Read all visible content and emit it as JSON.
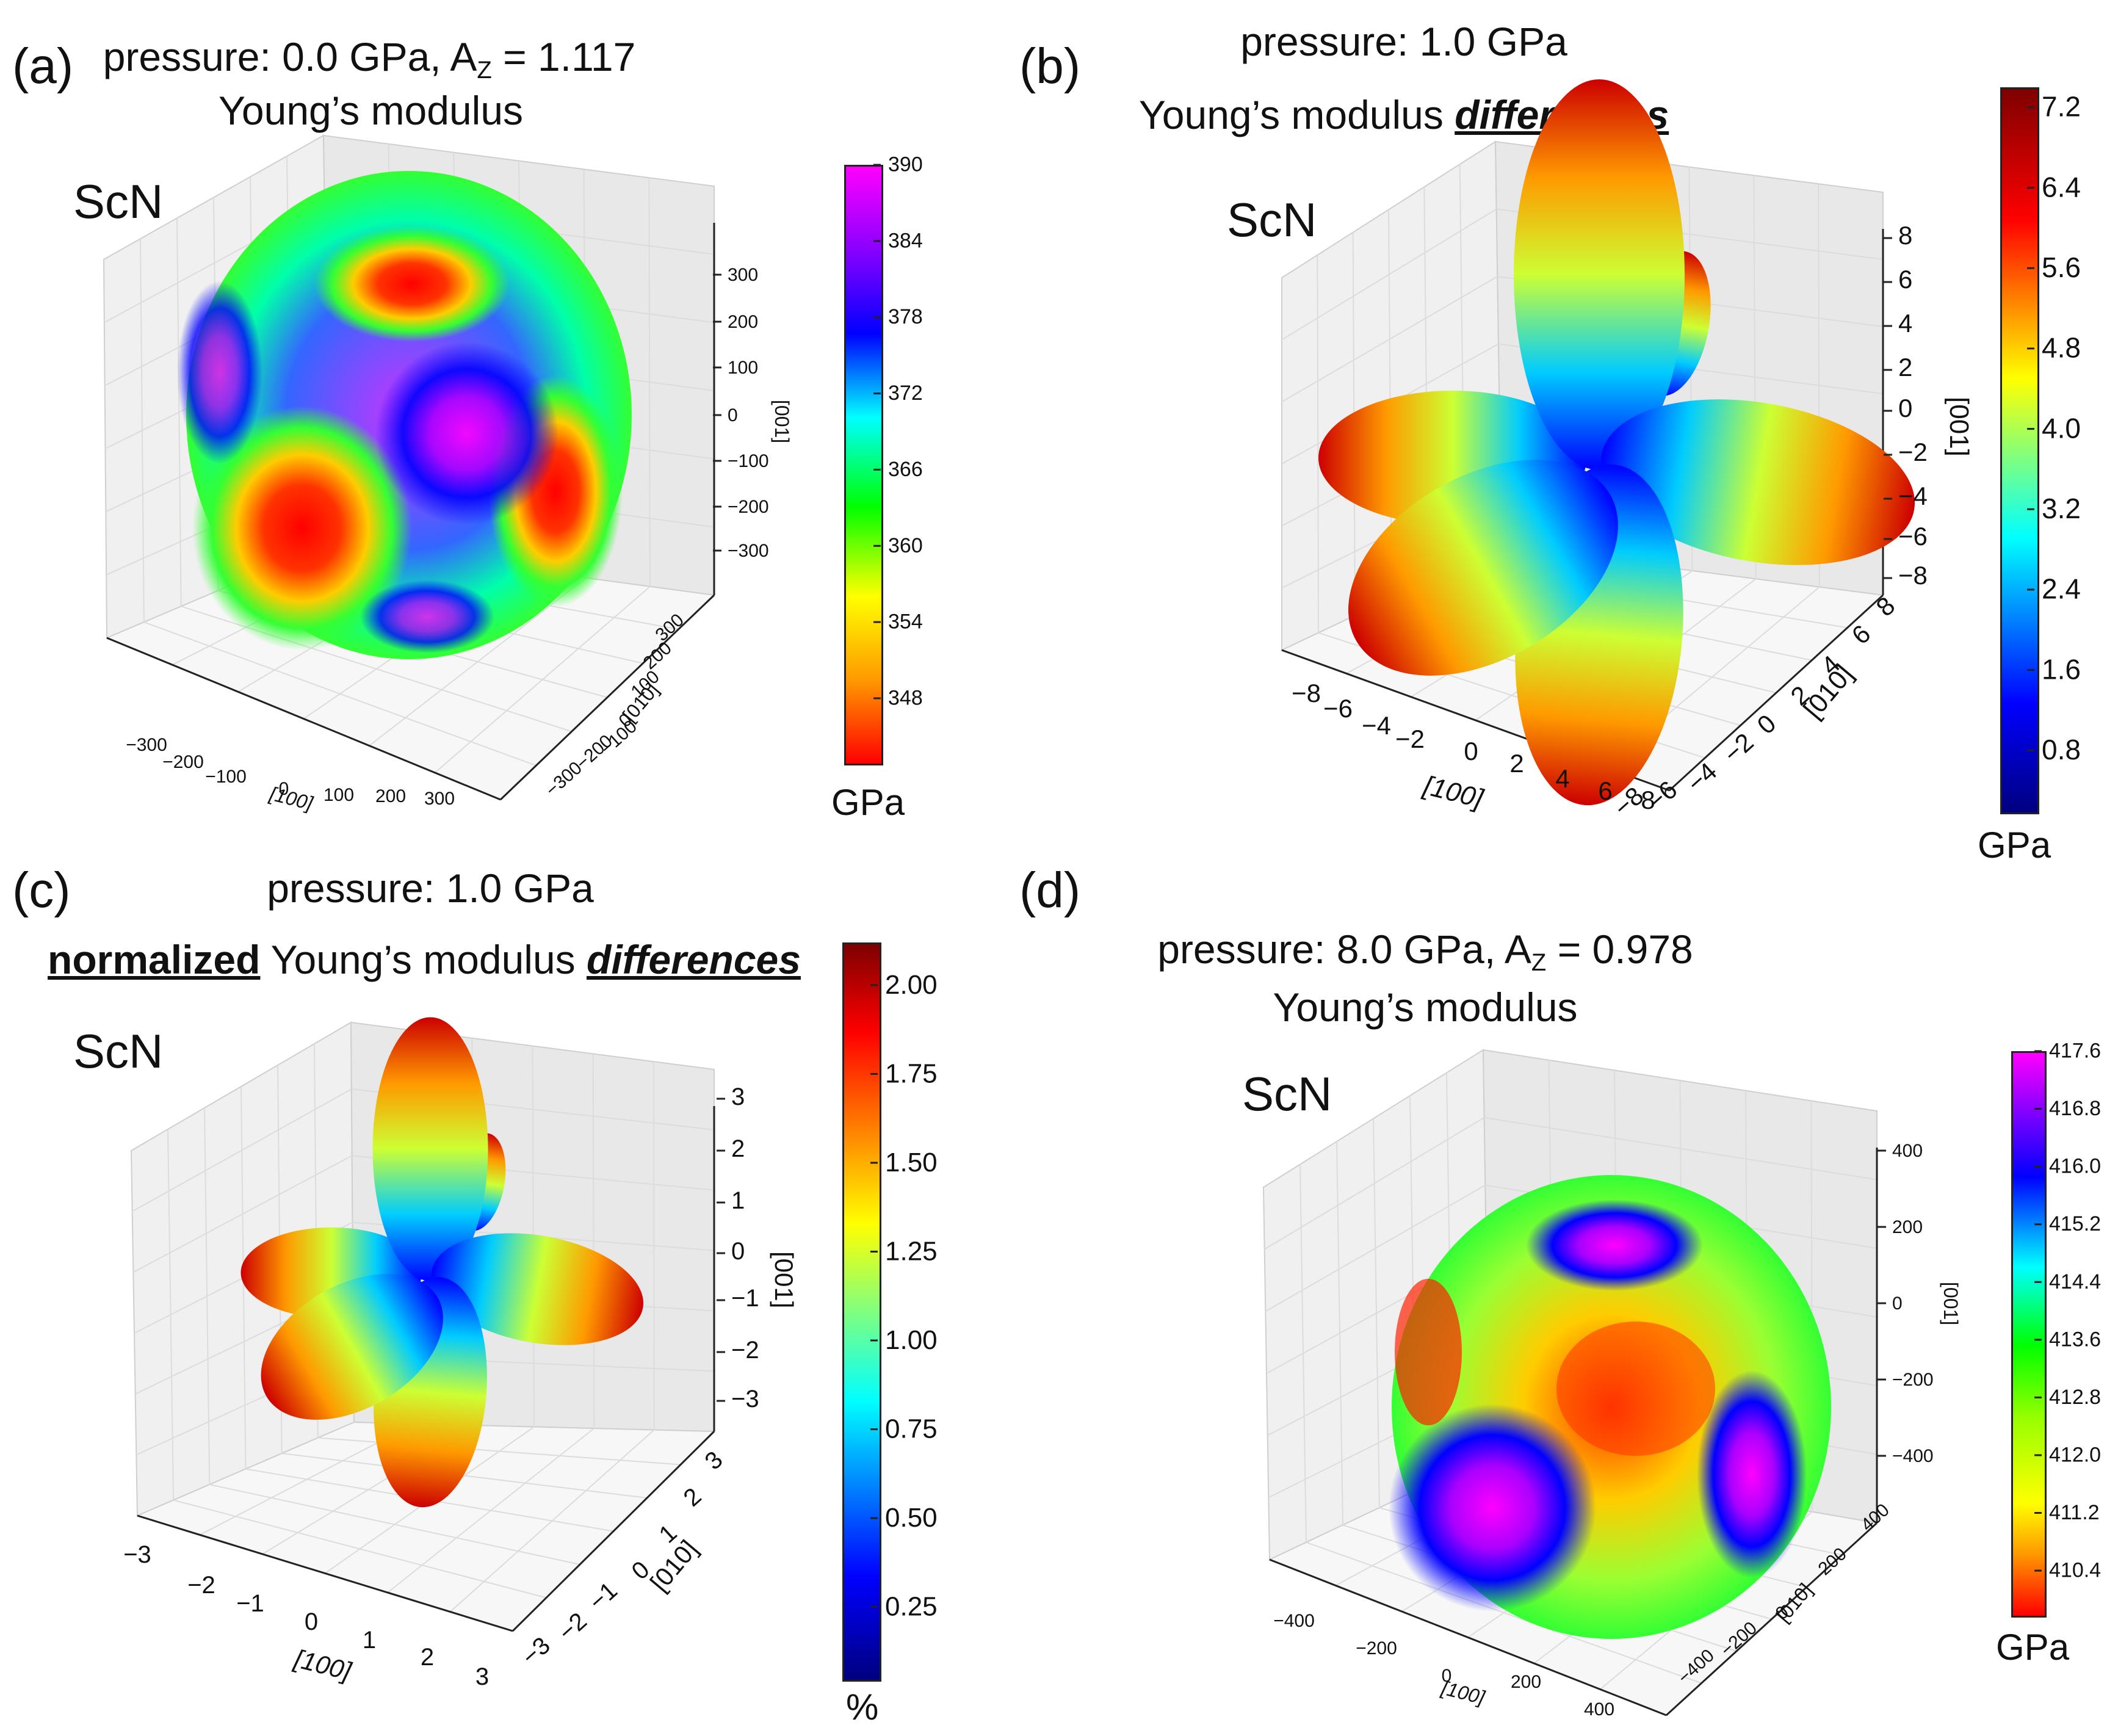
{
  "panels": [
    {
      "label": "(a)",
      "title_line1": "pressure: 0.0 GPa,  A",
      "title_sub": "Z",
      "title_line1_tail": " = 1.117",
      "title_line2": "Young’s modulus",
      "material": "ScN",
      "colorbar": {
        "unit": "GPa",
        "ticks": [
          "390",
          "384",
          "378",
          "372",
          "366",
          "360",
          "354",
          "348"
        ],
        "colormap": "gist_rainbow"
      },
      "axes": {
        "z_label": "[001]",
        "x_label": "[100]",
        "y_label": "[010]",
        "z_ticks": [
          "300",
          "200",
          "100",
          "0",
          "−100",
          "−200",
          "−300"
        ],
        "x_ticks": [
          "−300",
          "−200",
          "−100",
          "0",
          "100",
          "200",
          "300"
        ],
        "y_ticks": [
          "300",
          "200",
          "100",
          "0",
          "−100",
          "−200",
          "−300"
        ]
      }
    },
    {
      "label": "(b)",
      "title_line1": "pressure: 1.0 GPa",
      "title_line2_pre": "Young’s modulus ",
      "title_line2_em": "differences",
      "material": "ScN",
      "colorbar": {
        "unit": "GPa",
        "ticks": [
          "7.2",
          "6.4",
          "5.6",
          "4.8",
          "4.0",
          "3.2",
          "2.4",
          "1.6",
          "0.8"
        ],
        "colormap": "jet"
      },
      "axes": {
        "z_label": "[001]",
        "x_label": "[100]",
        "y_label": "[010]",
        "z_ticks": [
          "8",
          "6",
          "4",
          "2",
          "0",
          "−2",
          "−4",
          "−6",
          "−8"
        ],
        "x_ticks": [
          "−8",
          "−6",
          "−4",
          "−2",
          "0",
          "2",
          "4",
          "6",
          "8"
        ],
        "y_ticks": [
          "8",
          "6",
          "4",
          "2",
          "0",
          "−2",
          "−4",
          "−6",
          "−8"
        ]
      }
    },
    {
      "label": "(c)",
      "title_line1": "pressure: 1.0 GPa",
      "title_line2_bold": "normalized",
      "title_line2_mid": " Young’s modulus ",
      "title_line2_em": "differences",
      "material": "ScN",
      "colorbar": {
        "unit": "%",
        "ticks": [
          "2.00",
          "1.75",
          "1.50",
          "1.25",
          "1.00",
          "0.75",
          "0.50",
          "0.25"
        ],
        "colormap": "jet"
      },
      "axes": {
        "z_label": "[001]",
        "x_label": "[100]",
        "y_label": "[010]",
        "z_ticks": [
          "3",
          "2",
          "1",
          "0",
          "−1",
          "−2",
          "−3"
        ],
        "x_ticks": [
          "−3",
          "−2",
          "−1",
          "0",
          "1",
          "2",
          "3"
        ],
        "y_ticks": [
          "3",
          "2",
          "1",
          "0",
          "−1",
          "−2",
          "−3"
        ]
      }
    },
    {
      "label": "(d)",
      "title_line1": "pressure: 8.0 GPa,  A",
      "title_sub": "Z",
      "title_line1_tail": " = 0.978",
      "title_line2": "Young’s modulus",
      "material": "ScN",
      "colorbar": {
        "unit": "GPa",
        "ticks": [
          "417.6",
          "416.8",
          "416.0",
          "415.2",
          "414.4",
          "413.6",
          "412.8",
          "412.0",
          "411.2",
          "410.4"
        ],
        "colormap": "gist_rainbow"
      },
      "axes": {
        "z_label": "[001]",
        "x_label": "[100]",
        "y_label": "[010]",
        "z_ticks": [
          "400",
          "200",
          "0",
          "−200",
          "−400"
        ],
        "x_ticks": [
          "−400",
          "−200",
          "0",
          "200",
          "400"
        ],
        "y_ticks": [
          "400",
          "200",
          "0",
          "−200",
          "−400"
        ]
      }
    }
  ],
  "chart_data": [
    {
      "type": "surface3d",
      "title": "pressure: 0.0 GPa, A_Z = 1.117 — Young’s modulus",
      "material": "ScN",
      "quantity": "Young’s modulus",
      "unit": "GPa",
      "color_range": [
        343,
        390
      ],
      "axis_range": [
        -390,
        390
      ],
      "shape": "near-sphere",
      "A_Z": 1.117,
      "pressure_GPa": 0.0
    },
    {
      "type": "surface3d",
      "title": "pressure: 1.0 GPa — Young’s modulus differences",
      "material": "ScN",
      "quantity": "Young’s modulus differences",
      "unit": "GPa",
      "color_range": [
        0.2,
        7.4
      ],
      "axis_range": [
        -8,
        8
      ],
      "shape": "six-lobed (lobes along <100>)",
      "pressure_GPa": 1.0
    },
    {
      "type": "surface3d",
      "title": "pressure: 1.0 GPa — normalized Young’s modulus differences",
      "material": "ScN",
      "quantity": "normalized Young’s modulus differences",
      "unit": "%",
      "color_range": [
        0.05,
        2.12
      ],
      "axis_range": [
        -3,
        3
      ],
      "shape": "six-lobed (lobes along <100>)",
      "pressure_GPa": 1.0
    },
    {
      "type": "surface3d",
      "title": "pressure: 8.0 GPa, A_Z = 0.978 — Young’s modulus",
      "material": "ScN",
      "quantity": "Young’s modulus",
      "unit": "GPa",
      "color_range": [
        409.8,
        417.6
      ],
      "axis_range": [
        -470,
        470
      ],
      "shape": "near-sphere",
      "A_Z": 0.978,
      "pressure_GPa": 8.0
    }
  ],
  "colors": {
    "gist_rainbow": [
      "#ff0000",
      "#ff9900",
      "#ffff00",
      "#00ff00",
      "#00ffff",
      "#0000ff",
      "#8800ff",
      "#ff00ff"
    ],
    "jet": [
      "#00007f",
      "#0000ff",
      "#00ffff",
      "#ffff00",
      "#ff0000",
      "#7f0000"
    ],
    "pane": "#f2f2f2",
    "grid": "#dcdcdc"
  }
}
